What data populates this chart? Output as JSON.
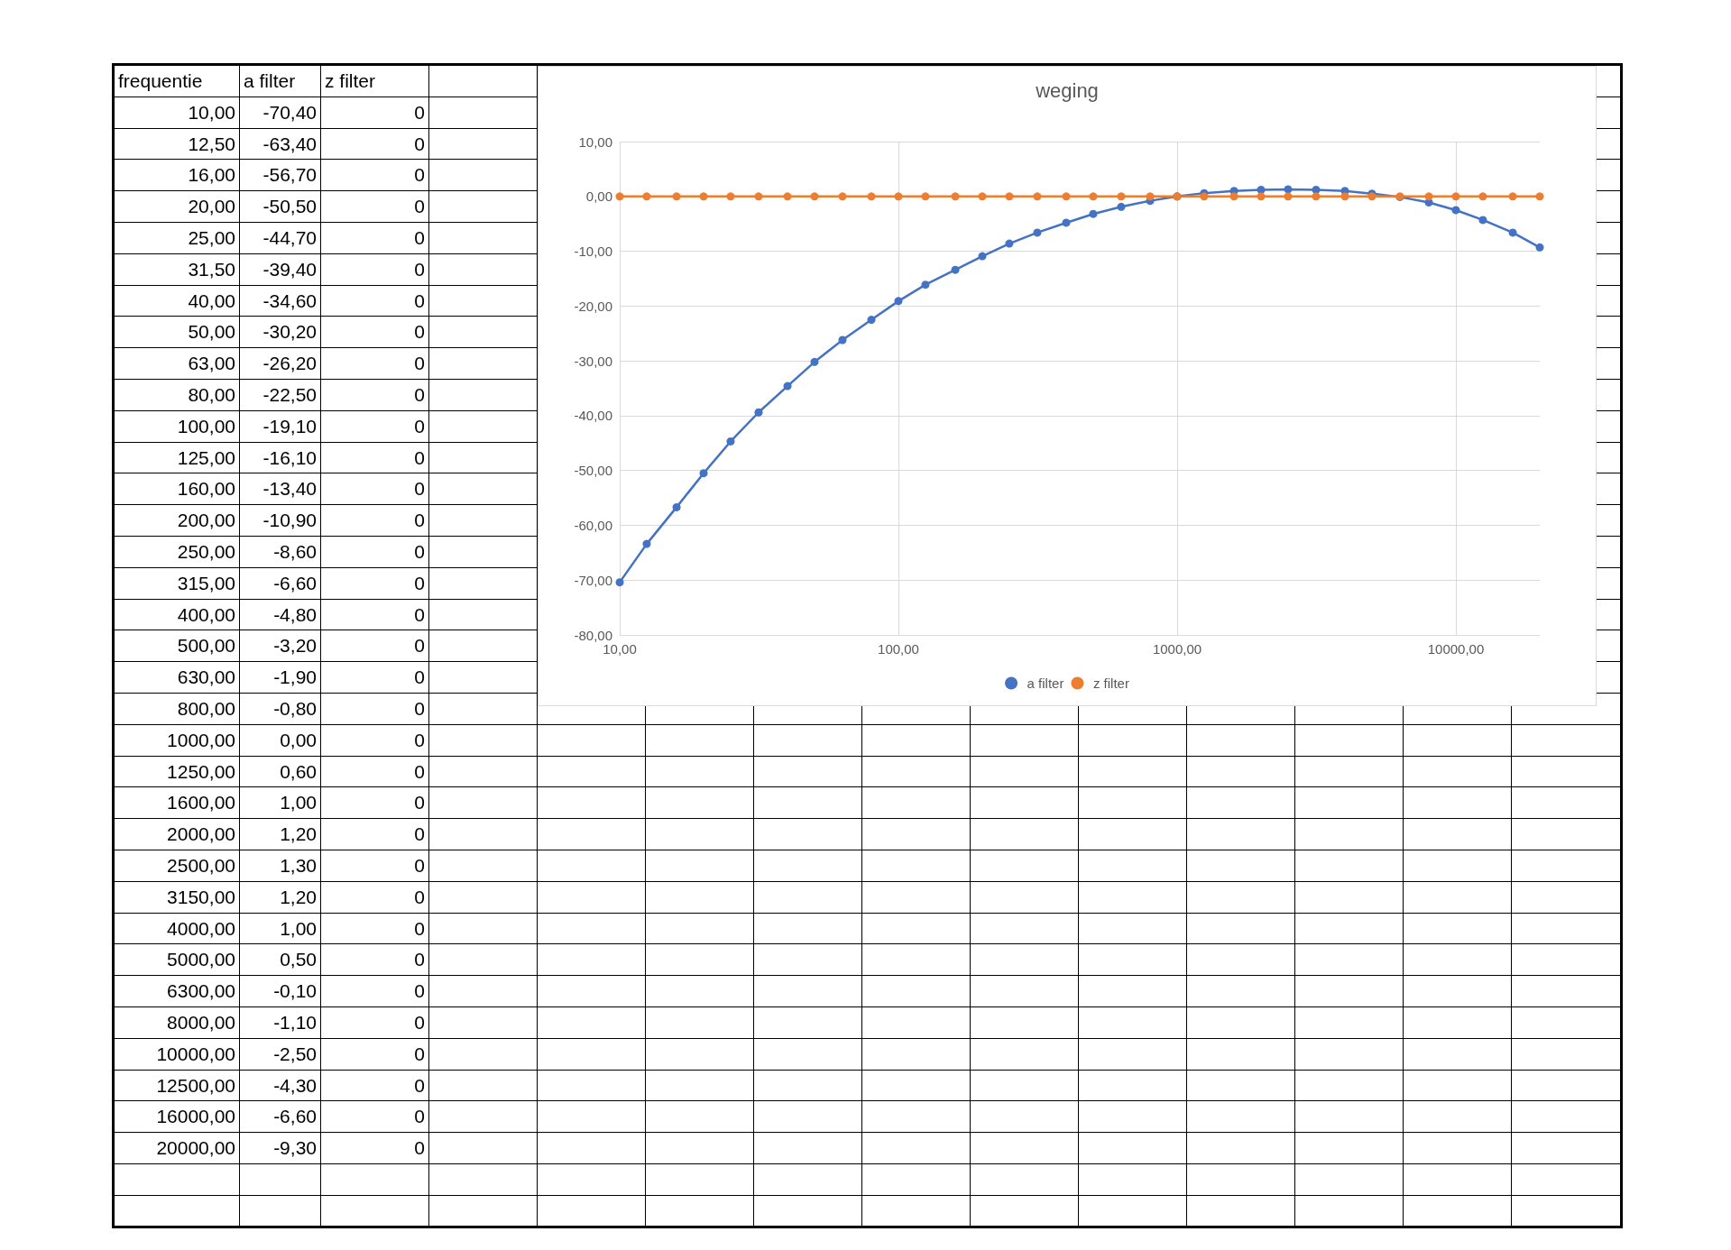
{
  "chart_data": [
    {
      "type": "other",
      "annotations": [
        "frequentie",
        "a filter",
        "z filter",
        "10,00",
        "-70,40",
        "0",
        "12,50",
        "-63,40",
        "0",
        "16,00",
        "-56,70",
        "0",
        "20,00",
        "-50,50",
        "0",
        "25,00",
        "-44,70",
        "0",
        "31,50",
        "-39,40",
        "0",
        "40,00",
        "-34,60",
        "0",
        "50,00",
        "-30,20",
        "0",
        "63,00",
        "-26,20",
        "0",
        "80,00",
        "-22,50",
        "0",
        "100,00",
        "-19,10",
        "0",
        "125,00",
        "-16,10",
        "0",
        "160,00",
        "-13,40",
        "0",
        "200,00",
        "-10,90",
        "0",
        "250,00",
        "-8,60",
        "0",
        "315,00",
        "-6,60",
        "0",
        "400,00",
        "-4,80",
        "0",
        "500,00",
        "-3,20",
        "0",
        "630,00",
        "-1,90",
        "0",
        "800,00",
        "-0,80",
        "0",
        "1000,00",
        "0,00",
        "0",
        "1250,00",
        "0,60",
        "0",
        "1600,00",
        "1,00",
        "0",
        "2000,00",
        "1,20",
        "0",
        "2500,00",
        "1,30",
        "0",
        "3150,00",
        "1,20",
        "0",
        "4000,00",
        "1,00",
        "0",
        "5000,00",
        "0,50",
        "0",
        "6300,00",
        "-0,10",
        "0",
        "8000,00",
        "-1,10",
        "0",
        "10000,00",
        "-2,50",
        "0",
        "12500,00",
        "-4,30",
        "0",
        "16000,00",
        "-6,60",
        "0",
        "20000,00",
        "-9,30",
        "0"
      ]
    },
    {
      "type": "line",
      "title": "weging",
      "log": "x",
      "grid": true,
      "legend": "bottom",
      "marker": "circle",
      "line_style": "solid",
      "x": [
        10,
        12.5,
        16,
        20,
        25,
        31.5,
        40,
        50,
        63,
        80,
        100,
        125,
        160,
        200,
        250,
        315,
        400,
        500,
        630,
        800,
        1000,
        1250,
        1600,
        2000,
        2500,
        3150,
        4000,
        5000,
        6300,
        8000,
        10000,
        12500,
        16000,
        20000
      ],
      "xlim": [
        10,
        20000
      ],
      "xticks": [
        {
          "value": 10,
          "label": "10,00"
        },
        {
          "value": 100,
          "label": "100,00"
        },
        {
          "value": 1000,
          "label": "1000,00"
        },
        {
          "value": 10000,
          "label": "10000,00"
        }
      ],
      "ylim": [
        -80,
        10
      ],
      "yticks": [
        {
          "value": -80,
          "label": "-80,00"
        },
        {
          "value": -70,
          "label": "-70,00"
        },
        {
          "value": -60,
          "label": "-60,00"
        },
        {
          "value": -50,
          "label": "-50,00"
        },
        {
          "value": -40,
          "label": "-40,00"
        },
        {
          "value": -30,
          "label": "-30,00"
        },
        {
          "value": -20,
          "label": "-20,00"
        },
        {
          "value": -10,
          "label": "-10,00"
        },
        {
          "value": 0,
          "label": "0,00"
        },
        {
          "value": 10,
          "label": "10,00"
        }
      ],
      "series": [
        {
          "name": "a filter",
          "color": "#4472c4",
          "values": [
            -70.4,
            -63.4,
            -56.7,
            -50.5,
            -44.7,
            -39.4,
            -34.6,
            -30.2,
            -26.2,
            -22.5,
            -19.1,
            -16.1,
            -13.4,
            -10.9,
            -8.6,
            -6.6,
            -4.8,
            -3.2,
            -1.9,
            -0.8,
            0,
            0.6,
            1,
            1.2,
            1.3,
            1.2,
            1,
            0.5,
            -0.1,
            -1.1,
            -2.5,
            -4.3,
            -6.6,
            -9.3
          ]
        },
        {
          "name": "z filter",
          "color": "#ed7d31",
          "values": [
            0,
            0,
            0,
            0,
            0,
            0,
            0,
            0,
            0,
            0,
            0,
            0,
            0,
            0,
            0,
            0,
            0,
            0,
            0,
            0,
            0,
            0,
            0,
            0,
            0,
            0,
            0,
            0,
            0,
            0,
            0,
            0,
            0,
            0
          ]
        }
      ]
    }
  ]
}
